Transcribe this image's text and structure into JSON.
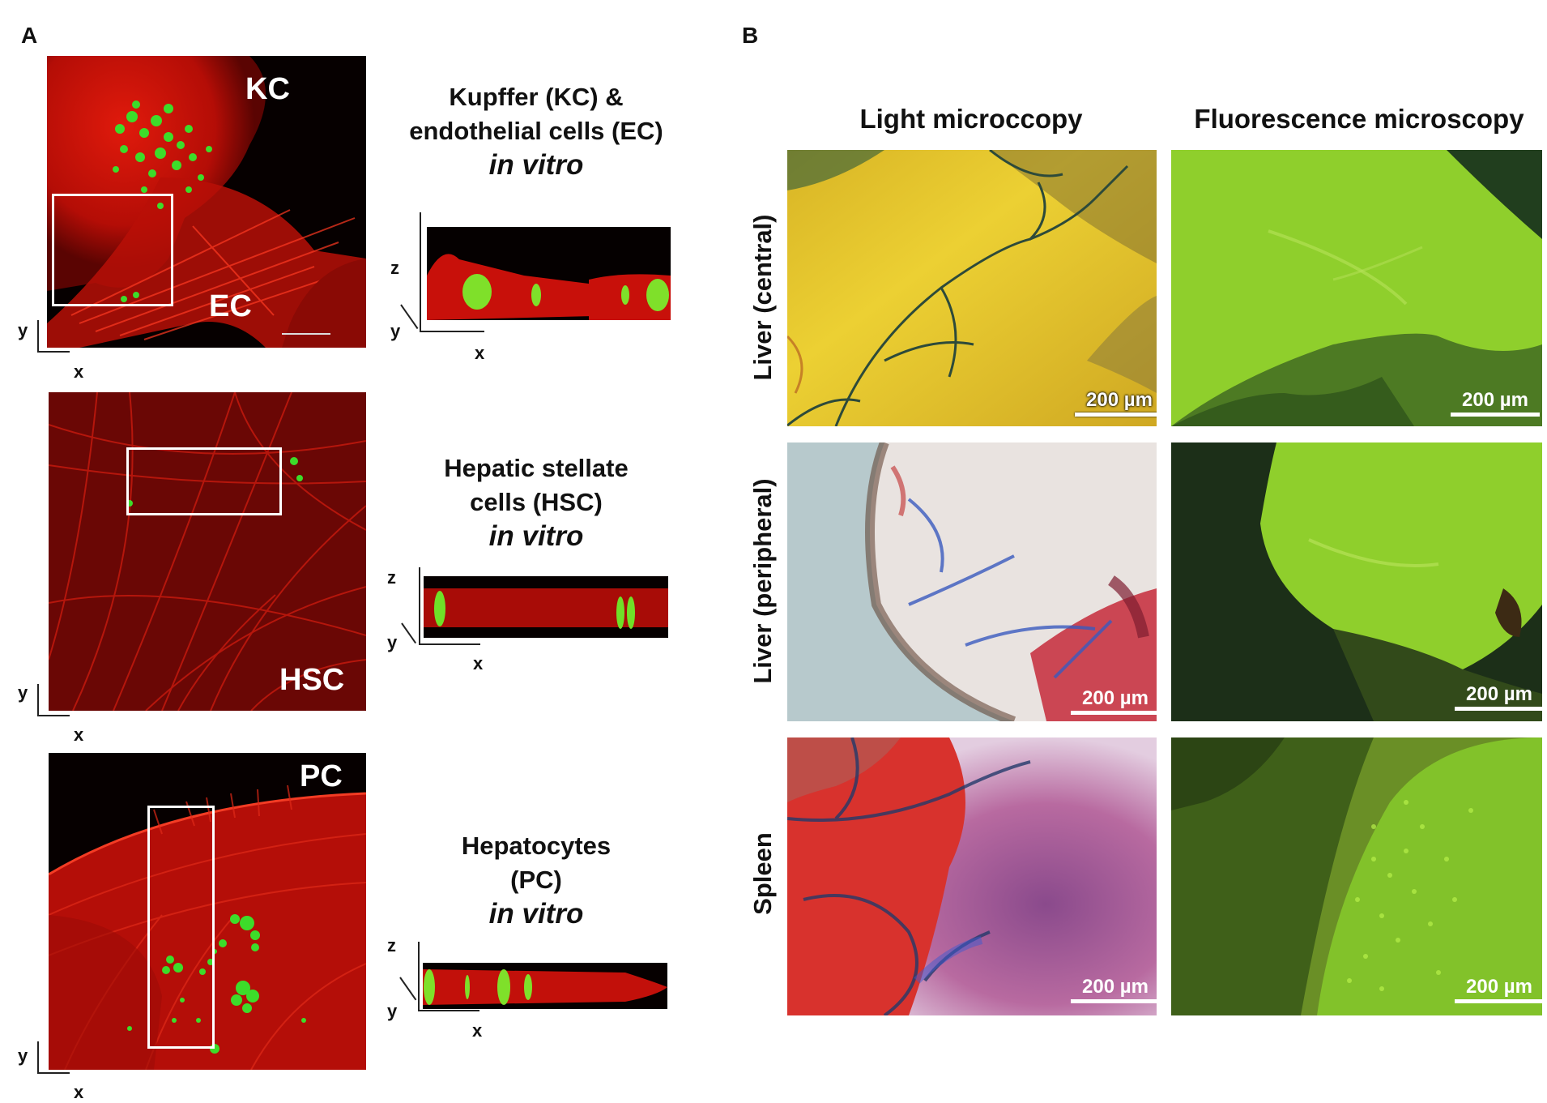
{
  "panel_a": {
    "letter": "A",
    "rows": [
      {
        "cell_labels": [
          "KC",
          "EC"
        ],
        "caption_line1": "Kupffer (KC) &",
        "caption_line2": "endothelial cells (EC)",
        "caption_italic": "in vitro",
        "xy_axis": {
          "y": "y",
          "x": "x"
        },
        "xz_axis": {
          "z": "z",
          "y": "y",
          "x": "x"
        }
      },
      {
        "cell_labels": [
          "HSC"
        ],
        "caption_line1": "Hepatic stellate",
        "caption_line2": "cells (HSC)",
        "caption_italic": "in vitro",
        "xy_axis": {
          "y": "y",
          "x": "x"
        },
        "xz_axis": {
          "z": "z",
          "y": "y",
          "x": "x"
        }
      },
      {
        "cell_labels": [
          "PC"
        ],
        "caption_line1": "Hepatocytes",
        "caption_line2": "(PC)",
        "caption_italic": "in vitro",
        "xy_axis": {
          "y": "y",
          "x": "x"
        },
        "xz_axis": {
          "z": "z",
          "y": "y",
          "x": "x"
        }
      }
    ]
  },
  "panel_b": {
    "letter": "B",
    "columns": [
      "Light microccopy",
      "Fluorescence microscopy"
    ],
    "rows": [
      "Liver (central)",
      "Liver (peripheral)",
      "Spleen"
    ],
    "scale_bar": "200 µm"
  },
  "colors": {
    "actin_red": "#d41010",
    "bead_green": "#3ddc2a",
    "tissue_yellow": "#e6c21a",
    "fluor_green": "#8fd12b",
    "background": "#000000"
  }
}
